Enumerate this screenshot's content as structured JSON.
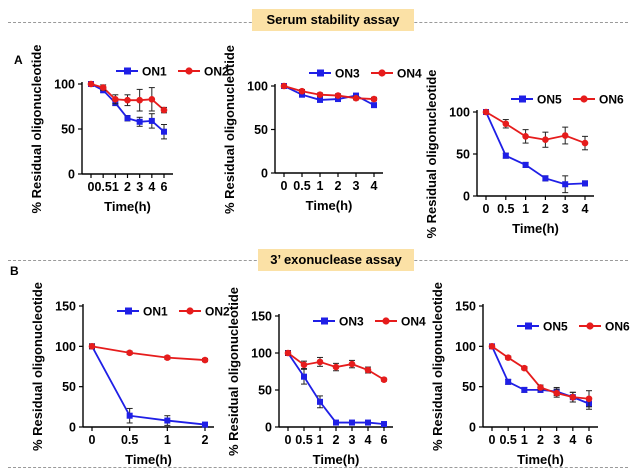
{
  "sections": {
    "serum_title": "Serum stability assay",
    "exo_title": "3’ exonuclease assay",
    "panel_a": "A",
    "panel_b": "B"
  },
  "colors": {
    "blue": "#1f1fe6",
    "red": "#e61c1c",
    "axis": "#000000"
  },
  "chart_data": [
    {
      "type": "line",
      "ylabel": "% Residual oligonucleotide",
      "xlabel": "Time(h)",
      "x": [
        "0",
        "0.5",
        "1",
        "2",
        "3",
        "4",
        "6"
      ],
      "ylim": [
        0,
        100
      ],
      "yticks": [
        0,
        50,
        100
      ],
      "series": [
        {
          "name": "ON1",
          "color": "#1f1fe6",
          "marker": "square",
          "values": [
            100,
            93,
            79,
            62,
            58,
            59,
            47
          ],
          "err": [
            0,
            2,
            3,
            3,
            5,
            8,
            8
          ]
        },
        {
          "name": "ON2",
          "color": "#e61c1c",
          "marker": "circle",
          "values": [
            100,
            96,
            83,
            82,
            82,
            83,
            71
          ],
          "err": [
            0,
            3,
            5,
            6,
            12,
            13,
            3
          ]
        }
      ]
    },
    {
      "type": "line",
      "ylabel": "% Residual oligonucleotide",
      "xlabel": "Time(h)",
      "x": [
        "0",
        "0.5",
        "1",
        "2",
        "3",
        "4"
      ],
      "ylim": [
        0,
        100
      ],
      "yticks": [
        0,
        50,
        100
      ],
      "series": [
        {
          "name": "ON3",
          "color": "#1f1fe6",
          "marker": "square",
          "values": [
            100,
            90,
            84,
            85,
            89,
            78
          ],
          "err": [
            0,
            2,
            2,
            2,
            2,
            2
          ]
        },
        {
          "name": "ON4",
          "color": "#e61c1c",
          "marker": "circle",
          "values": [
            100,
            94,
            90,
            89,
            86,
            85
          ],
          "err": [
            0,
            2,
            2,
            2,
            2,
            2
          ]
        }
      ]
    },
    {
      "type": "line",
      "ylabel": "% Residual oligonucleotide",
      "xlabel": "Time(h)",
      "x": [
        "0",
        "0.5",
        "1",
        "2",
        "3",
        "4"
      ],
      "ylim": [
        0,
        100
      ],
      "yticks": [
        0,
        50,
        100
      ],
      "series": [
        {
          "name": "ON5",
          "color": "#1f1fe6",
          "marker": "square",
          "values": [
            100,
            48,
            37,
            21,
            14,
            15
          ],
          "err": [
            0,
            3,
            3,
            3,
            10,
            3
          ]
        },
        {
          "name": "ON6",
          "color": "#e61c1c",
          "marker": "circle",
          "values": [
            100,
            86,
            71,
            67,
            72,
            63
          ],
          "err": [
            0,
            5,
            8,
            9,
            10,
            8
          ]
        }
      ]
    },
    {
      "type": "line",
      "ylabel": "% Residual oligonucleotide",
      "xlabel": "Time(h)",
      "x": [
        "0",
        "0.5",
        "1",
        "2"
      ],
      "ylim": [
        0,
        150
      ],
      "yticks": [
        0,
        50,
        100,
        150
      ],
      "series": [
        {
          "name": "ON1",
          "color": "#1f1fe6",
          "marker": "square",
          "values": [
            100,
            14,
            8,
            3
          ],
          "err": [
            0,
            9,
            6,
            2
          ]
        },
        {
          "name": "ON2",
          "color": "#e61c1c",
          "marker": "circle",
          "values": [
            100,
            92,
            86,
            83
          ],
          "err": [
            3,
            2,
            2,
            2
          ]
        }
      ]
    },
    {
      "type": "line",
      "ylabel": "% Residual oligonucleotide",
      "xlabel": "Time(h)",
      "x": [
        "0",
        "0.5",
        "1",
        "2",
        "3",
        "4",
        "6"
      ],
      "ylim": [
        0,
        150
      ],
      "yticks": [
        0,
        50,
        100,
        150
      ],
      "series": [
        {
          "name": "ON3",
          "color": "#1f1fe6",
          "marker": "square",
          "values": [
            100,
            68,
            34,
            6,
            6,
            6,
            4
          ],
          "err": [
            0,
            10,
            8,
            2,
            2,
            2,
            2
          ]
        },
        {
          "name": "ON4",
          "color": "#e61c1c",
          "marker": "circle",
          "values": [
            100,
            84,
            88,
            81,
            85,
            77,
            64
          ],
          "err": [
            3,
            5,
            6,
            5,
            5,
            4,
            2
          ]
        }
      ]
    },
    {
      "type": "line",
      "ylabel": "% Residual oligonucleotide",
      "xlabel": "Time(h)",
      "x": [
        "0",
        "0.5",
        "1",
        "2",
        "3",
        "4",
        "6"
      ],
      "ylim": [
        0,
        150
      ],
      "yticks": [
        0,
        50,
        100,
        150
      ],
      "series": [
        {
          "name": "ON5",
          "color": "#1f1fe6",
          "marker": "square",
          "values": [
            100,
            56,
            46,
            46,
            44,
            37,
            29
          ],
          "err": [
            0,
            3,
            3,
            3,
            5,
            6,
            7
          ]
        },
        {
          "name": "ON6",
          "color": "#e61c1c",
          "marker": "circle",
          "values": [
            100,
            86,
            73,
            49,
            42,
            37,
            35
          ],
          "err": [
            0,
            2,
            2,
            3,
            5,
            6,
            10
          ]
        }
      ]
    }
  ]
}
